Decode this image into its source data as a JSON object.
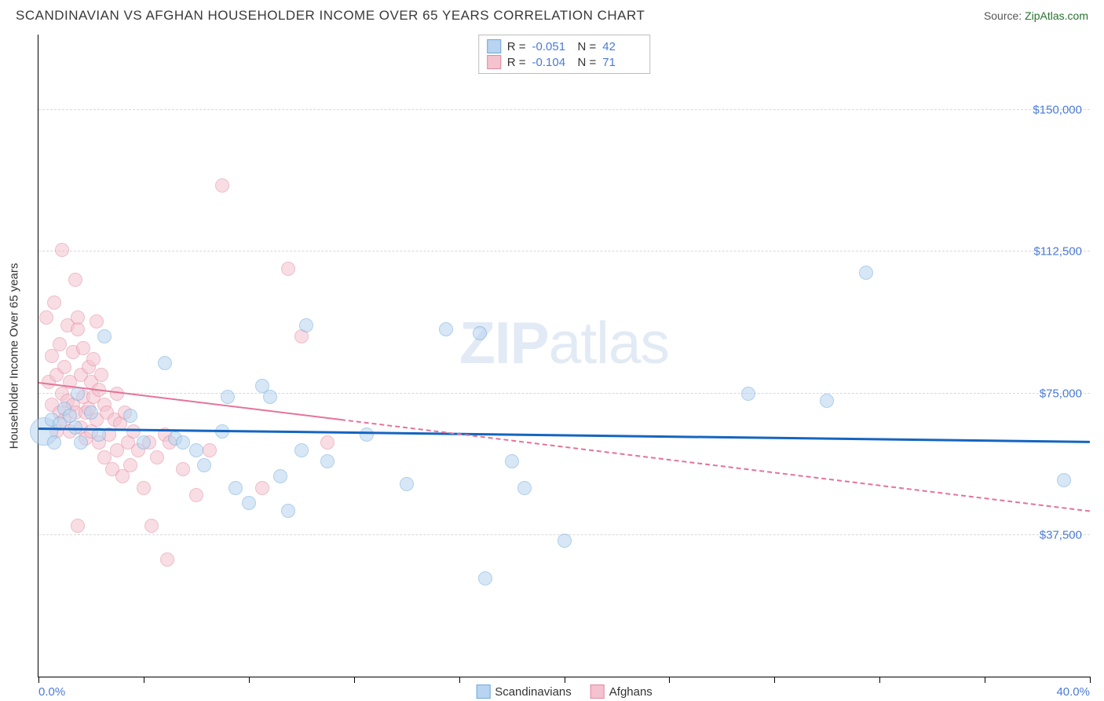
{
  "header": {
    "title": "SCANDINAVIAN VS AFGHAN HOUSEHOLDER INCOME OVER 65 YEARS CORRELATION CHART",
    "source_prefix": "Source: ",
    "source_link": "ZipAtlas.com"
  },
  "watermark": {
    "bold": "ZIP",
    "rest": "atlas"
  },
  "chart": {
    "type": "scatter",
    "x_axis": {
      "min": 0.0,
      "max": 40.0,
      "tick_positions_pct": [
        0,
        10,
        20,
        30,
        40,
        50,
        60,
        70,
        80,
        90,
        100
      ],
      "label_min": "0.0%",
      "label_max": "40.0%"
    },
    "y_axis": {
      "title": "Householder Income Over 65 years",
      "min": 0,
      "max": 170000,
      "gridlines": [
        {
          "value": 37500,
          "label": "$37,500"
        },
        {
          "value": 75000,
          "label": "$75,000"
        },
        {
          "value": 112500,
          "label": "$112,500"
        },
        {
          "value": 150000,
          "label": "$150,000"
        }
      ]
    },
    "series": [
      {
        "id": "scand",
        "label": "Scandinavians",
        "fill": "#b8d4f0",
        "stroke": "#6fa8dc",
        "fill_opacity": 0.55,
        "marker_stroke_width": 1.2,
        "marker_radius": 9,
        "trend": {
          "color": "#1565c0",
          "width": 3,
          "style": "solid",
          "y_start": 66000,
          "y_end": 62500
        },
        "stats": {
          "R": "-0.051",
          "N": "42"
        },
        "points": [
          {
            "x": 0.2,
            "y": 65000,
            "r": 18
          },
          {
            "x": 0.5,
            "y": 68000
          },
          {
            "x": 0.6,
            "y": 62000
          },
          {
            "x": 0.8,
            "y": 67000
          },
          {
            "x": 1.0,
            "y": 71000
          },
          {
            "x": 1.2,
            "y": 69000
          },
          {
            "x": 1.4,
            "y": 66000
          },
          {
            "x": 1.5,
            "y": 75000
          },
          {
            "x": 1.6,
            "y": 62000
          },
          {
            "x": 2.0,
            "y": 70000
          },
          {
            "x": 2.3,
            "y": 64000
          },
          {
            "x": 2.5,
            "y": 90000
          },
          {
            "x": 3.5,
            "y": 69000
          },
          {
            "x": 4.0,
            "y": 62000
          },
          {
            "x": 4.8,
            "y": 83000
          },
          {
            "x": 5.2,
            "y": 63000
          },
          {
            "x": 5.5,
            "y": 62000
          },
          {
            "x": 6.0,
            "y": 60000
          },
          {
            "x": 6.3,
            "y": 56000
          },
          {
            "x": 7.0,
            "y": 65000
          },
          {
            "x": 7.2,
            "y": 74000
          },
          {
            "x": 7.5,
            "y": 50000
          },
          {
            "x": 8.0,
            "y": 46000
          },
          {
            "x": 8.5,
            "y": 77000
          },
          {
            "x": 8.8,
            "y": 74000
          },
          {
            "x": 9.2,
            "y": 53000
          },
          {
            "x": 9.5,
            "y": 44000
          },
          {
            "x": 10.0,
            "y": 60000
          },
          {
            "x": 10.2,
            "y": 93000
          },
          {
            "x": 11.0,
            "y": 57000
          },
          {
            "x": 12.5,
            "y": 64000
          },
          {
            "x": 14.0,
            "y": 51000
          },
          {
            "x": 15.5,
            "y": 92000
          },
          {
            "x": 16.8,
            "y": 91000
          },
          {
            "x": 17.0,
            "y": 26000
          },
          {
            "x": 18.0,
            "y": 57000
          },
          {
            "x": 18.5,
            "y": 50000
          },
          {
            "x": 20.0,
            "y": 36000
          },
          {
            "x": 27.0,
            "y": 75000
          },
          {
            "x": 30.0,
            "y": 73000
          },
          {
            "x": 31.5,
            "y": 107000
          },
          {
            "x": 39.0,
            "y": 52000
          }
        ]
      },
      {
        "id": "afghan",
        "label": "Afghans",
        "fill": "#f5c2cf",
        "stroke": "#e08aa0",
        "fill_opacity": 0.55,
        "marker_stroke_width": 1.2,
        "marker_radius": 9,
        "trend": {
          "color": "#e57399",
          "width": 2,
          "style": "solid-then-dashed",
          "y_start": 78000,
          "y_end": 44000,
          "solid_until_x": 11.5
        },
        "stats": {
          "R": "-0.104",
          "N": "71"
        },
        "points": [
          {
            "x": 0.3,
            "y": 95000
          },
          {
            "x": 0.4,
            "y": 78000
          },
          {
            "x": 0.5,
            "y": 72000
          },
          {
            "x": 0.5,
            "y": 85000
          },
          {
            "x": 0.6,
            "y": 99000
          },
          {
            "x": 0.7,
            "y": 65000
          },
          {
            "x": 0.7,
            "y": 80000
          },
          {
            "x": 0.8,
            "y": 70000
          },
          {
            "xg": 0.8,
            "y": 88000
          },
          {
            "x": 0.9,
            "y": 113000
          },
          {
            "x": 0.9,
            "y": 75000
          },
          {
            "x": 1.0,
            "y": 68000
          },
          {
            "x": 1.0,
            "y": 82000
          },
          {
            "x": 1.1,
            "y": 93000
          },
          {
            "x": 1.1,
            "y": 73000
          },
          {
            "x": 1.2,
            "y": 65000
          },
          {
            "x": 1.2,
            "y": 78000
          },
          {
            "x": 1.3,
            "y": 86000
          },
          {
            "x": 1.3,
            "y": 72000
          },
          {
            "x": 1.4,
            "y": 105000
          },
          {
            "x": 1.4,
            "y": 70000
          },
          {
            "x": 1.5,
            "y": 92000
          },
          {
            "x": 1.5,
            "y": 95000
          },
          {
            "x": 1.5,
            "y": 40000
          },
          {
            "x": 1.6,
            "y": 80000
          },
          {
            "x": 1.6,
            "y": 66000
          },
          {
            "x": 1.7,
            "y": 87000
          },
          {
            "x": 1.7,
            "y": 74000
          },
          {
            "x": 1.8,
            "y": 70000
          },
          {
            "x": 1.8,
            "y": 63000
          },
          {
            "x": 1.9,
            "y": 82000
          },
          {
            "x": 1.9,
            "y": 71000
          },
          {
            "x": 2.0,
            "y": 78000
          },
          {
            "x": 2.0,
            "y": 65000
          },
          {
            "x": 2.1,
            "y": 84000
          },
          {
            "x": 2.1,
            "y": 74000
          },
          {
            "x": 2.2,
            "y": 94000
          },
          {
            "x": 2.2,
            "y": 68000
          },
          {
            "x": 2.3,
            "y": 76000
          },
          {
            "x": 2.3,
            "y": 62000
          },
          {
            "x": 2.4,
            "y": 80000
          },
          {
            "x": 2.5,
            "y": 72000
          },
          {
            "x": 2.5,
            "y": 58000
          },
          {
            "x": 2.6,
            "y": 70000
          },
          {
            "x": 2.7,
            "y": 64000
          },
          {
            "x": 2.8,
            "y": 55000
          },
          {
            "x": 2.9,
            "y": 68000
          },
          {
            "x": 3.0,
            "y": 60000
          },
          {
            "x": 3.0,
            "y": 75000
          },
          {
            "x": 3.1,
            "y": 67000
          },
          {
            "x": 3.2,
            "y": 53000
          },
          {
            "x": 3.3,
            "y": 70000
          },
          {
            "x": 3.4,
            "y": 62000
          },
          {
            "x": 3.5,
            "y": 56000
          },
          {
            "x": 3.6,
            "y": 65000
          },
          {
            "x": 3.8,
            "y": 60000
          },
          {
            "x": 4.0,
            "y": 50000
          },
          {
            "x": 4.2,
            "y": 62000
          },
          {
            "x": 4.3,
            "y": 40000
          },
          {
            "x": 4.5,
            "y": 58000
          },
          {
            "x": 4.8,
            "y": 64000
          },
          {
            "x": 4.9,
            "y": 31000
          },
          {
            "x": 5.0,
            "y": 62000
          },
          {
            "x": 5.5,
            "y": 55000
          },
          {
            "x": 6.0,
            "y": 48000
          },
          {
            "x": 6.5,
            "y": 60000
          },
          {
            "x": 7.0,
            "y": 130000
          },
          {
            "x": 8.5,
            "y": 50000
          },
          {
            "x": 9.5,
            "y": 108000
          },
          {
            "x": 10.0,
            "y": 90000
          },
          {
            "x": 11.0,
            "y": 62000
          }
        ]
      }
    ],
    "stats_box_labels": {
      "R": "R =",
      "N": "N ="
    },
    "background_color": "#ffffff",
    "grid_color": "#d8d8d8"
  }
}
